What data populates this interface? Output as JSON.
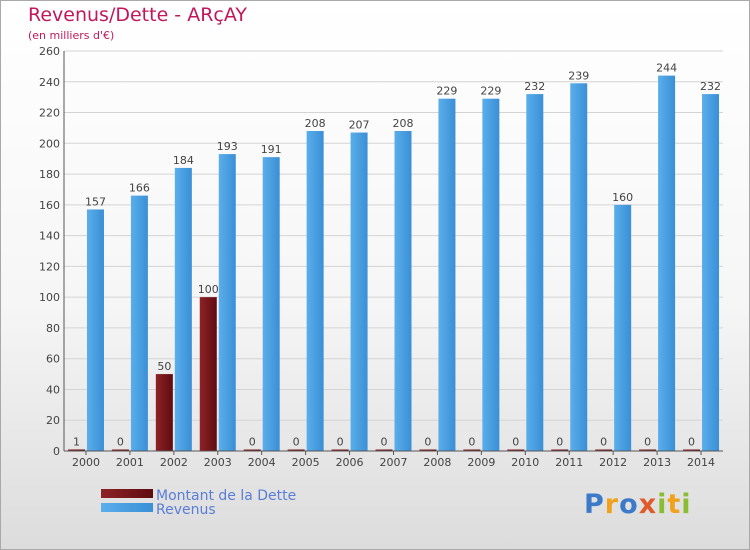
{
  "header": {
    "title": "Revenus/Dette - ARçAY",
    "subtitle": "(en milliers d'€)"
  },
  "logo": {
    "text": "Proxiti"
  },
  "chart_data": {
    "type": "bar",
    "title": "Revenus/Dette - ARçAY",
    "subtitle": "(en milliers d'€)",
    "xlabel": "",
    "ylabel": "",
    "categories": [
      "2000",
      "2001",
      "2002",
      "2003",
      "2004",
      "2005",
      "2006",
      "2007",
      "2008",
      "2009",
      "2010",
      "2011",
      "2012",
      "2013",
      "2014"
    ],
    "series": [
      {
        "name": "Montant de la Dette",
        "color": "#7a1418",
        "values": [
          1,
          0,
          50,
          100,
          0,
          0,
          0,
          0,
          0,
          0,
          0,
          0,
          0,
          0,
          0
        ]
      },
      {
        "name": "Revenus",
        "color": "#4a9ee0",
        "values": [
          157,
          166,
          184,
          193,
          191,
          208,
          207,
          208,
          229,
          229,
          232,
          239,
          160,
          244,
          232
        ]
      }
    ],
    "ylim": [
      0,
      260
    ],
    "yticks": [
      0,
      20,
      40,
      60,
      80,
      100,
      120,
      140,
      160,
      180,
      200,
      220,
      240,
      260
    ],
    "grid": true,
    "legend_position": "bottom-left"
  }
}
